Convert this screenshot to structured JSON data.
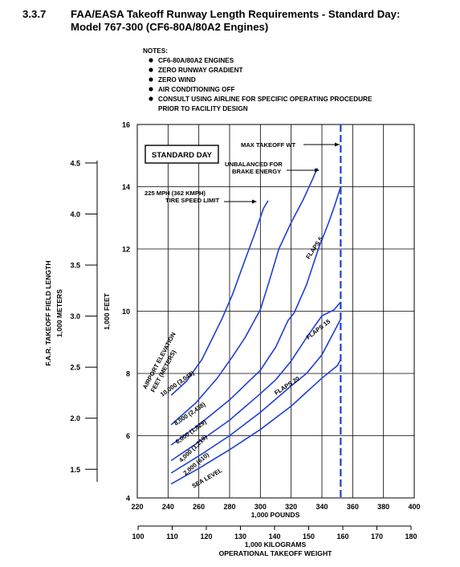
{
  "header": {
    "section_number": "3.3.7",
    "title_line1": "FAA/EASA Takeoff Runway Length Requirements - Standard Day:",
    "title_line2": "Model 767-300 (CF6-80A/80A2 Engines)"
  },
  "notes": {
    "heading": "NOTES:",
    "items": [
      "CF6-80A/80A2 ENGINES",
      "ZERO RUNWAY GRADIENT",
      "ZERO WIND",
      "AIR CONDITIONING OFF",
      "CONSULT USING AIRLINE FOR SPECIFIC OPERATING PROCEDURE",
      "PRIOR TO FACILITY DESIGN"
    ]
  },
  "chart_data": {
    "type": "line",
    "title": "STANDARD DAY",
    "xlabel": "1,000 POUNDS",
    "xlabel2_line1": "1,000 KILOGRAMS",
    "xlabel2_line2": "OPERATIONAL TAKEOFF WEIGHT",
    "ylabel": "1,000 FEET",
    "ylabel2_line1": "F.A.R. TAKEOFF FIELD LENGTH",
    "ylabel2_line2": "1,000 METERS",
    "xlim": [
      220,
      400
    ],
    "ylim": [
      4,
      16
    ],
    "x_ticks": [
      "220",
      "240",
      "260",
      "280",
      "300",
      "320",
      "340",
      "360",
      "380",
      "400"
    ],
    "y_ticks": [
      "4",
      "6",
      "8",
      "10",
      "12",
      "14",
      "16"
    ],
    "kg_ticks": [
      "100",
      "110",
      "120",
      "130",
      "140",
      "150",
      "160",
      "170",
      "180"
    ],
    "meter_ticks": [
      "1.5",
      "2.0",
      "2.5",
      "3.0",
      "3.5",
      "4.0",
      "4.5"
    ],
    "colors": {
      "curves": "#1f3fd6",
      "limit": "#1f3fd6",
      "frame": "#000000"
    },
    "max_takeoff_weight_x": 352.2,
    "series": [
      {
        "name": "SEA LEVEL",
        "x": [
          242,
          260,
          280,
          300,
          320,
          340,
          350,
          352.2
        ],
        "y": [
          4.45,
          4.95,
          5.55,
          6.2,
          6.95,
          7.85,
          8.25,
          8.45
        ]
      },
      {
        "name": "2,000 (610)",
        "x": [
          242,
          260,
          280,
          300,
          320,
          330,
          340,
          348,
          352.2
        ],
        "y": [
          4.8,
          5.35,
          6.0,
          6.75,
          7.6,
          8.0,
          8.6,
          9.35,
          9.75
        ]
      },
      {
        "name": "4,000 (1,219)",
        "x": [
          242,
          260,
          280,
          300,
          310,
          320,
          330,
          340,
          348,
          352.2
        ],
        "y": [
          5.2,
          5.8,
          6.5,
          7.35,
          7.8,
          8.4,
          9.15,
          9.85,
          10.05,
          10.3
        ]
      },
      {
        "name": "6,000 (1,829)",
        "x": [
          242,
          260,
          280,
          300,
          310,
          318,
          322,
          330,
          338,
          344,
          348,
          352.2
        ],
        "y": [
          5.7,
          6.35,
          7.15,
          8.1,
          8.85,
          9.7,
          9.95,
          10.85,
          12.05,
          12.8,
          13.35,
          14.0
        ]
      },
      {
        "name": "8,000 (2,438)",
        "x": [
          242,
          258,
          272,
          282,
          290,
          300,
          306,
          312,
          320,
          328,
          334,
          337
        ],
        "y": [
          6.35,
          7.05,
          7.85,
          8.55,
          9.15,
          10.05,
          11.0,
          12.0,
          12.85,
          13.6,
          14.25,
          14.6
        ]
      },
      {
        "name": "10,000 (3,048)",
        "x": [
          242,
          252,
          262,
          270,
          275,
          282,
          290,
          296,
          302,
          305
        ],
        "y": [
          7.3,
          7.75,
          8.45,
          9.25,
          9.75,
          10.55,
          11.65,
          12.45,
          13.3,
          13.55
        ]
      }
    ],
    "annotations": {
      "elevation_header": [
        "AIRPORT ELEVATION",
        "FEET (METERS)"
      ],
      "tire_limit": [
        "225 MPH (362 KMPH)",
        "TIRE SPEED LIMIT"
      ],
      "brake_energy": [
        "UNBALANCED FOR",
        "BRAKE ENERGY"
      ],
      "max_takeoff": "MAX TAKEOFF WT",
      "flaps": [
        "FLAPS 5",
        "FLAPS 15",
        "FLAPS 20"
      ]
    }
  }
}
